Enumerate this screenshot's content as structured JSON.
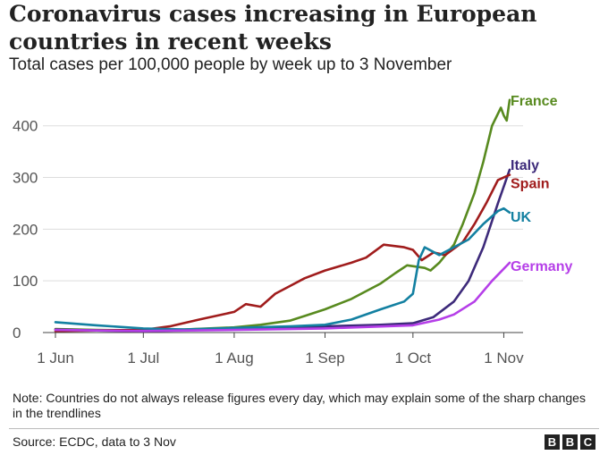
{
  "header": {
    "title": "Coronavirus cases increasing in European countries in recent weeks",
    "subtitle": "Total cases per 100,000 people by week up to 3 November"
  },
  "footer": {
    "note": "Note: Countries do not always release figures every day, which may explain some of the sharp changes in the trendlines",
    "source": "Source: ECDC, data to 3 Nov",
    "logo_letters": [
      "B",
      "B",
      "C"
    ]
  },
  "chart_data": {
    "type": "line",
    "x_type": "date",
    "xlim": [
      "2020-06-01",
      "2020-11-03"
    ],
    "ylim": [
      0,
      460
    ],
    "yticks": [
      0,
      100,
      200,
      300,
      400
    ],
    "xticks": [
      {
        "date": "2020-06-01",
        "label": "1 Jun"
      },
      {
        "date": "2020-07-01",
        "label": "1 Jul"
      },
      {
        "date": "2020-08-01",
        "label": "1 Aug"
      },
      {
        "date": "2020-09-01",
        "label": "1 Sep"
      },
      {
        "date": "2020-10-01",
        "label": "1 Oct"
      },
      {
        "date": "2020-11-01",
        "label": "1 Nov"
      }
    ],
    "grid": true,
    "series": [
      {
        "name": "France",
        "color": "#588a1f",
        "points": [
          [
            "2020-06-01",
            7
          ],
          [
            "2020-06-15",
            5
          ],
          [
            "2020-07-01",
            4
          ],
          [
            "2020-07-15",
            6
          ],
          [
            "2020-08-01",
            10
          ],
          [
            "2020-08-10",
            15
          ],
          [
            "2020-08-20",
            23
          ],
          [
            "2020-08-25",
            32
          ],
          [
            "2020-09-01",
            45
          ],
          [
            "2020-09-10",
            65
          ],
          [
            "2020-09-20",
            95
          ],
          [
            "2020-09-25",
            115
          ],
          [
            "2020-09-29",
            130
          ],
          [
            "2020-10-05",
            125
          ],
          [
            "2020-10-07",
            120
          ],
          [
            "2020-10-10",
            135
          ],
          [
            "2020-10-15",
            170
          ],
          [
            "2020-10-18",
            210
          ],
          [
            "2020-10-22",
            270
          ],
          [
            "2020-10-25",
            330
          ],
          [
            "2020-10-28",
            400
          ],
          [
            "2020-10-31",
            435
          ],
          [
            "2020-11-01",
            420
          ],
          [
            "2020-11-02",
            410
          ],
          [
            "2020-11-03",
            450
          ]
        ]
      },
      {
        "name": "Italy",
        "color": "#3d2a7a",
        "points": [
          [
            "2020-06-01",
            6
          ],
          [
            "2020-06-15",
            4
          ],
          [
            "2020-07-01",
            3
          ],
          [
            "2020-08-01",
            6
          ],
          [
            "2020-08-20",
            9
          ],
          [
            "2020-09-01",
            12
          ],
          [
            "2020-09-20",
            15
          ],
          [
            "2020-10-01",
            18
          ],
          [
            "2020-10-08",
            30
          ],
          [
            "2020-10-15",
            60
          ],
          [
            "2020-10-20",
            100
          ],
          [
            "2020-10-25",
            165
          ],
          [
            "2020-10-30",
            250
          ],
          [
            "2020-11-03",
            315
          ]
        ]
      },
      {
        "name": "Spain",
        "color": "#a01c1c",
        "points": [
          [
            "2020-06-01",
            3
          ],
          [
            "2020-06-15",
            4
          ],
          [
            "2020-07-01",
            5
          ],
          [
            "2020-07-10",
            12
          ],
          [
            "2020-07-20",
            25
          ],
          [
            "2020-08-01",
            40
          ],
          [
            "2020-08-05",
            55
          ],
          [
            "2020-08-10",
            50
          ],
          [
            "2020-08-15",
            75
          ],
          [
            "2020-08-20",
            90
          ],
          [
            "2020-08-25",
            105
          ],
          [
            "2020-09-01",
            120
          ],
          [
            "2020-09-10",
            135
          ],
          [
            "2020-09-15",
            145
          ],
          [
            "2020-09-21",
            170
          ],
          [
            "2020-09-28",
            165
          ],
          [
            "2020-10-01",
            160
          ],
          [
            "2020-10-04",
            140
          ],
          [
            "2020-10-08",
            155
          ],
          [
            "2020-10-12",
            150
          ],
          [
            "2020-10-18",
            175
          ],
          [
            "2020-10-22",
            210
          ],
          [
            "2020-10-26",
            250
          ],
          [
            "2020-10-30",
            295
          ],
          [
            "2020-11-03",
            305
          ]
        ]
      },
      {
        "name": "UK",
        "color": "#1380a1",
        "points": [
          [
            "2020-06-01",
            20
          ],
          [
            "2020-06-15",
            14
          ],
          [
            "2020-07-01",
            8
          ],
          [
            "2020-07-15",
            6
          ],
          [
            "2020-08-01",
            9
          ],
          [
            "2020-08-20",
            12
          ],
          [
            "2020-09-01",
            15
          ],
          [
            "2020-09-10",
            25
          ],
          [
            "2020-09-20",
            45
          ],
          [
            "2020-09-28",
            60
          ],
          [
            "2020-10-01",
            75
          ],
          [
            "2020-10-03",
            140
          ],
          [
            "2020-10-05",
            165
          ],
          [
            "2020-10-10",
            150
          ],
          [
            "2020-10-15",
            165
          ],
          [
            "2020-10-20",
            180
          ],
          [
            "2020-10-25",
            210
          ],
          [
            "2020-10-30",
            235
          ],
          [
            "2020-11-01",
            240
          ],
          [
            "2020-11-03",
            232
          ]
        ]
      },
      {
        "name": "Germany",
        "color": "#b53ee8",
        "points": [
          [
            "2020-06-01",
            5
          ],
          [
            "2020-07-01",
            3
          ],
          [
            "2020-08-01",
            5
          ],
          [
            "2020-09-01",
            8
          ],
          [
            "2020-10-01",
            14
          ],
          [
            "2020-10-10",
            25
          ],
          [
            "2020-10-15",
            35
          ],
          [
            "2020-10-22",
            60
          ],
          [
            "2020-10-28",
            100
          ],
          [
            "2020-11-03",
            135
          ]
        ]
      }
    ],
    "labels": [
      {
        "name": "France",
        "color": "#588a1f",
        "anchor_value": 450
      },
      {
        "name": "Italy",
        "color": "#3d2a7a",
        "anchor_value": 325
      },
      {
        "name": "Spain",
        "color": "#a01c1c",
        "anchor_value": 290
      },
      {
        "name": "UK",
        "color": "#1380a1",
        "anchor_value": 225
      },
      {
        "name": "Germany",
        "color": "#b53ee8",
        "anchor_value": 130
      }
    ]
  }
}
